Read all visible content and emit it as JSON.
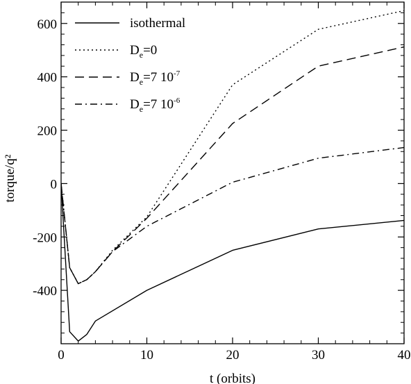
{
  "chart_data": {
    "type": "line",
    "title": "",
    "xlabel": "t (orbits)",
    "ylabel": "torque/q²",
    "xlim": [
      0,
      40
    ],
    "ylim": [
      -600,
      680
    ],
    "x_ticks": [
      0,
      10,
      20,
      30,
      40
    ],
    "y_ticks": [
      -400,
      -200,
      0,
      200,
      400,
      600
    ],
    "x_tick_labels": [
      "0",
      "10",
      "20",
      "30",
      "40"
    ],
    "y_tick_labels": [
      "-400",
      "-200",
      "0",
      "200",
      "400",
      "600"
    ],
    "grid": false,
    "legend_position": "top-left",
    "series": [
      {
        "name": "isothermal",
        "legend_parts": [
          "isothermal"
        ],
        "dash": "solid",
        "color": "#000000",
        "x": [
          0,
          1,
          2,
          3,
          4,
          10,
          20,
          30,
          40
        ],
        "y": [
          0,
          -555,
          -590,
          -565,
          -515,
          -400,
          -250,
          -170,
          -138
        ]
      },
      {
        "name": "De=0",
        "legend_parts": [
          "D",
          "e",
          "=0",
          "",
          ""
        ],
        "dash": "dotted",
        "color": "#000000",
        "x": [
          0,
          1,
          2,
          3,
          4,
          6,
          10,
          20,
          30,
          40
        ],
        "y": [
          0,
          -315,
          -375,
          -360,
          -330,
          -250,
          -125,
          370,
          578,
          648
        ]
      },
      {
        "name": "De=7 10-7",
        "legend_parts": [
          "D",
          "e",
          "=7  10",
          "-7",
          ""
        ],
        "dash": "dashed",
        "color": "#000000",
        "x": [
          0,
          1,
          2,
          3,
          4,
          6,
          10,
          20,
          30,
          40
        ],
        "y": [
          0,
          -315,
          -375,
          -360,
          -330,
          -255,
          -130,
          225,
          440,
          512
        ]
      },
      {
        "name": "De=7 10-6",
        "legend_parts": [
          "D",
          "e",
          "=7  10",
          "-6",
          ""
        ],
        "dash": "dashdot",
        "color": "#000000",
        "x": [
          0,
          1,
          2,
          3,
          4,
          6,
          10,
          20,
          30,
          40
        ],
        "y": [
          0,
          -315,
          -375,
          -360,
          -330,
          -255,
          -160,
          5,
          95,
          135
        ]
      }
    ]
  }
}
